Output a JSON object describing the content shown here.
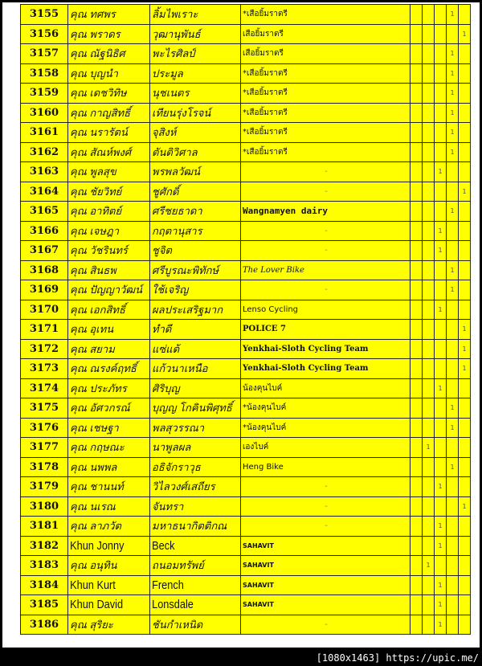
{
  "colors": {
    "row_bg": "#ffff00",
    "border": "#222222"
  },
  "mark_value": "1",
  "rows": [
    {
      "no": "3155",
      "first": "คุณ ทศพร",
      "last": "ลิ้มไพเราะ",
      "club": "*เสือยิ้มราตรี",
      "style": "",
      "mark": 3
    },
    {
      "no": "3156",
      "first": "คุณ พราดร",
      "last": "วุฒานุพันธ์",
      "club": "เสือยิ้มราตรี",
      "style": "",
      "mark": 4
    },
    {
      "no": "3157",
      "first": "คุณ ณัฐนิธิศ",
      "last": "พะไรศิลป์",
      "club": "เสือยิ้มราตรี",
      "style": "",
      "mark": 3
    },
    {
      "no": "3158",
      "first": "คุณ บุญนำ",
      "last": "ประมูล",
      "club": "*เสือยิ้มราตรี",
      "style": "",
      "mark": 3
    },
    {
      "no": "3159",
      "first": "คุณ เดชวิทิษ",
      "last": "นุชเนตร",
      "club": "*เสือยิ้มราตรี",
      "style": "",
      "mark": 3
    },
    {
      "no": "3160",
      "first": "คุณ กาญสิทธิ์",
      "last": "เทียนรุ่งโรจน์",
      "club": "*เสือยิ้มราตรี",
      "style": "",
      "mark": 3
    },
    {
      "no": "3161",
      "first": "คุณ นรารัตน์",
      "last": "จุสิงห์",
      "club": "*เสือยิ้มราตรี",
      "style": "",
      "mark": 3
    },
    {
      "no": "3162",
      "first": "คุณ สัณห์พงศ์",
      "last": "ตันติวิศาล",
      "club": "*เสือยิ้มราตรี",
      "style": "",
      "mark": 3
    },
    {
      "no": "3163",
      "first": "คุณ พูลสุข",
      "last": "พรพลวัฒน์",
      "club": "-",
      "style": "dash",
      "mark": 2
    },
    {
      "no": "3164",
      "first": "คุณ ชัยวิทย์",
      "last": "ชูศักดิ์",
      "club": "-",
      "style": "dash",
      "mark": 4
    },
    {
      "no": "3165",
      "first": "คุณ อาทิตย์",
      "last": "ศรีชยธาดา",
      "club": "Wangnamyen dairy",
      "style": "bold",
      "mark": 3
    },
    {
      "no": "3166",
      "first": "คุณ เจษฎา",
      "last": "กฤตานุสาร",
      "club": "-",
      "style": "dash",
      "mark": 2
    },
    {
      "no": "3167",
      "first": "คุณ วัชรินทร์",
      "last": "ชูจิต",
      "club": "-",
      "style": "dash",
      "mark": 2
    },
    {
      "no": "3168",
      "first": "คุณ สินธพ",
      "last": "ศรีบูรณะพิทักษ์",
      "club": "The Lover Bike",
      "style": "script",
      "mark": 3
    },
    {
      "no": "3169",
      "first": "คุณ ปัญญาวัฒน์",
      "last": "ใช้เจริญ",
      "club": "-",
      "style": "dash",
      "mark": 3
    },
    {
      "no": "3170",
      "first": "คุณ เอกสิทธิ์",
      "last": "ผลประเสริฐมาก",
      "club": "Lenso Cycling",
      "style": "",
      "mark": 2
    },
    {
      "no": "3171",
      "first": "คุณ อุเทน",
      "last": "ทำดี",
      "club": "POLICE 7",
      "style": "serifb",
      "mark": 4
    },
    {
      "no": "3172",
      "first": "คุณ สยาม",
      "last": "แซ่แต้",
      "club": "Yenkhai-Sloth Cycling Team",
      "style": "serifb",
      "mark": 4
    },
    {
      "no": "3173",
      "first": "คุณ ณรงค์ฤทธิ์",
      "last": "แก้วนาเหนือ",
      "club": "Yenkhai-Sloth Cycling Team",
      "style": "serifb",
      "mark": 4
    },
    {
      "no": "3174",
      "first": "คุณ ประภัทร",
      "last": "ศิริบุญ",
      "club": "น้องคุนไบค์",
      "style": "",
      "mark": 2
    },
    {
      "no": "3175",
      "first": "คุณ อัศวกรณ์",
      "last": "บุญญ โกคินพิศุทธิ์",
      "club": "*น้องคุนไบค์",
      "style": "",
      "mark": 3
    },
    {
      "no": "3176",
      "first": "คุณ เชษฐา",
      "last": "พลสุวรรณา",
      "club": "*น้องคุนไบค์",
      "style": "",
      "mark": 3
    },
    {
      "no": "3177",
      "first": "คุณ กฤษณะ",
      "last": "นาพูลผล",
      "club": "เองไบค์",
      "style": "",
      "mark": 1
    },
    {
      "no": "3178",
      "first": "คุณ นพพล",
      "last": "อธิจักราวุธ",
      "club": "Heng Bike",
      "style": "",
      "mark": 3
    },
    {
      "no": "3179",
      "first": "คุณ ชานนท์",
      "last": "วิไลวงศ์เสถียร",
      "club": "-",
      "style": "dash",
      "mark": 2
    },
    {
      "no": "3180",
      "first": "คุณ นเรณ",
      "last": "จันทรา",
      "club": "-",
      "style": "dash",
      "mark": 4
    },
    {
      "no": "3181",
      "first": "คุณ ลาภวัต",
      "last": "มหาธนากิตติกณ",
      "club": "-",
      "style": "dash",
      "mark": 2
    },
    {
      "no": "3182",
      "first": "Khun Jonny",
      "last": "Beck",
      "club": "SAHAVIT",
      "style": "sahavit",
      "mark": 2,
      "en": true
    },
    {
      "no": "3183",
      "first": "คุณ อนุทิน",
      "last": "ถนอมทรัพย์",
      "club": "SAHAVIT",
      "style": "sahavit",
      "mark": 1
    },
    {
      "no": "3184",
      "first": "Khun Kurt",
      "last": "French",
      "club": "SAHAVIT",
      "style": "sahavit",
      "mark": 2,
      "en": true
    },
    {
      "no": "3185",
      "first": "Khun David",
      "last": "Lonsdale",
      "club": "SAHAVIT",
      "style": "sahavit",
      "mark": 2,
      "en": true
    },
    {
      "no": "3186",
      "first": "คุณ สุริยะ",
      "last": "ชันกำเหนิด",
      "club": "-",
      "style": "dash",
      "mark": 2
    }
  ],
  "footer": "[1080x1463] https://upic.me/"
}
